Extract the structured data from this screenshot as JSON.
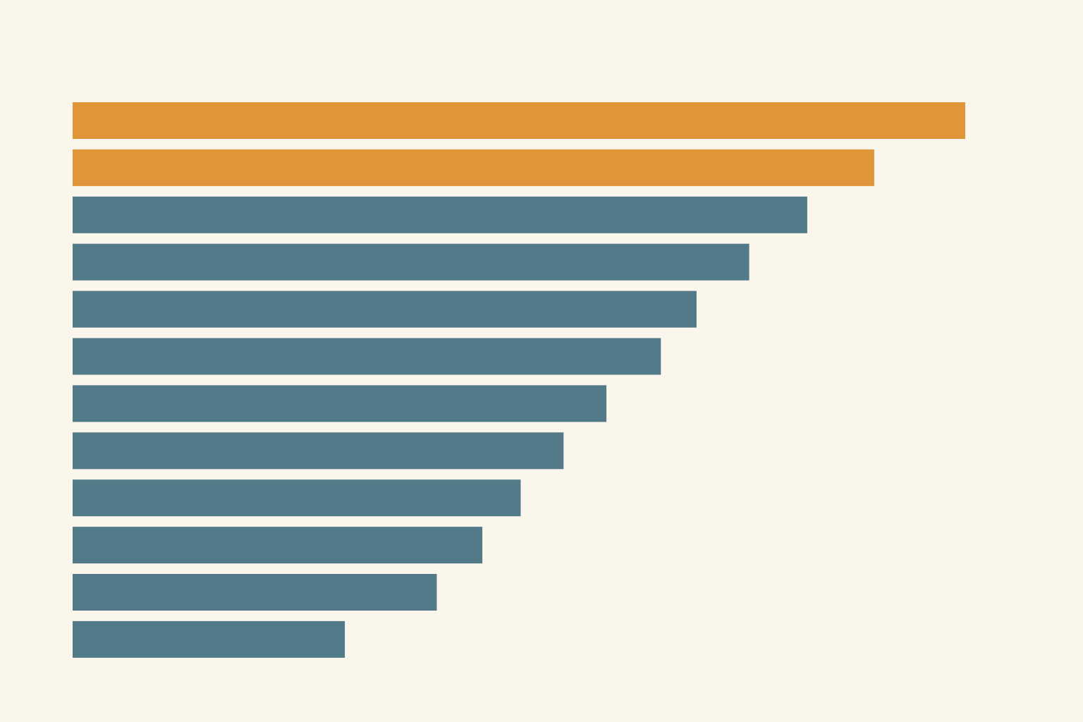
{
  "colors": {
    "background": "#FAF6EC",
    "highlight": "#E09538",
    "base": "#527A88"
  },
  "chart_data": {
    "type": "bar",
    "orientation": "horizontal",
    "title": "",
    "xlabel": "",
    "ylabel": "",
    "grid": false,
    "legend": "none",
    "xlim": [
      0,
      100
    ],
    "values": [
      100,
      89.8,
      82.3,
      75.8,
      69.9,
      65.9,
      59.8,
      55.0,
      50.2,
      45.9,
      40.8,
      30.5
    ],
    "highlighted": [
      true,
      true,
      false,
      false,
      false,
      false,
      false,
      false,
      false,
      false,
      false,
      false
    ]
  }
}
